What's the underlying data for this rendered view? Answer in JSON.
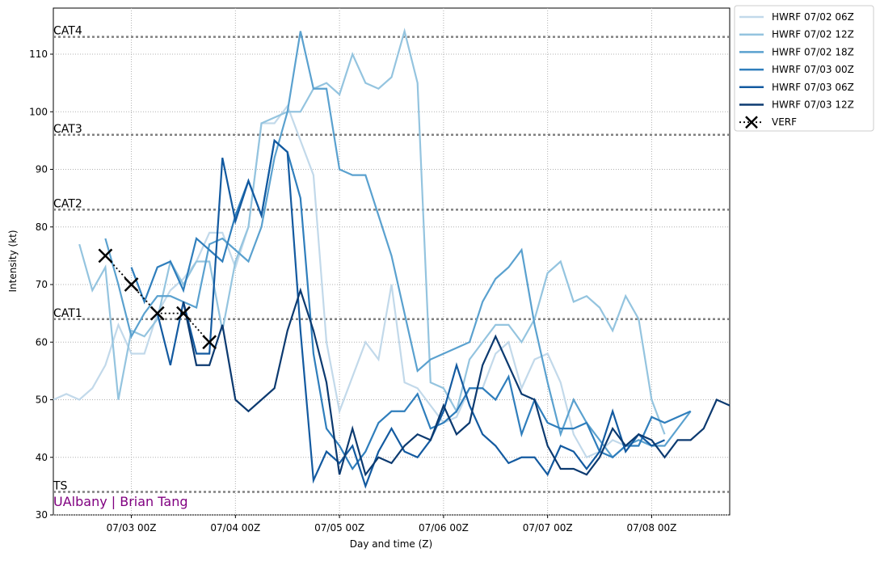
{
  "chart_data": {
    "type": "line",
    "xlabel": "Day and time (Z)",
    "ylabel": "Intensity (kt)",
    "credit": "UAlbany | Brian Tang",
    "credit_color": "#800080",
    "ylim": [
      30,
      118
    ],
    "yticks": [
      30,
      40,
      50,
      60,
      70,
      80,
      90,
      100,
      110
    ],
    "xlim": [
      "07/02 06Z",
      "07/08 18Z"
    ],
    "xticks": [
      "07/03 00Z",
      "07/04 00Z",
      "07/05 00Z",
      "07/06 00Z",
      "07/07 00Z",
      "07/08 00Z"
    ],
    "grid": true,
    "legend": "outside-upper-right",
    "thresholds": [
      {
        "label": "CAT4",
        "value": 113
      },
      {
        "label": "CAT3",
        "value": 96
      },
      {
        "label": "CAT2",
        "value": 83
      },
      {
        "label": "CAT1",
        "value": 64
      },
      {
        "label": "TS",
        "value": 34
      }
    ],
    "x": [
      "07/02 06Z",
      "07/02 09Z",
      "07/02 12Z",
      "07/02 15Z",
      "07/02 18Z",
      "07/02 21Z",
      "07/03 00Z",
      "07/03 03Z",
      "07/03 06Z",
      "07/03 09Z",
      "07/03 12Z",
      "07/03 15Z",
      "07/03 18Z",
      "07/03 21Z",
      "07/04 00Z",
      "07/04 03Z",
      "07/04 06Z",
      "07/04 09Z",
      "07/04 12Z",
      "07/04 15Z",
      "07/04 18Z",
      "07/04 21Z",
      "07/05 00Z",
      "07/05 03Z",
      "07/05 06Z",
      "07/05 09Z",
      "07/05 12Z",
      "07/05 15Z",
      "07/05 18Z",
      "07/05 21Z",
      "07/06 00Z",
      "07/06 03Z",
      "07/06 06Z",
      "07/06 09Z",
      "07/06 12Z",
      "07/06 15Z",
      "07/06 18Z",
      "07/06 21Z",
      "07/07 00Z",
      "07/07 03Z",
      "07/07 06Z",
      "07/07 09Z",
      "07/07 12Z",
      "07/07 15Z",
      "07/07 18Z",
      "07/07 21Z",
      "07/08 00Z",
      "07/08 03Z",
      "07/08 06Z",
      "07/08 09Z",
      "07/08 12Z",
      "07/08 15Z",
      "07/08 18Z"
    ],
    "series": [
      {
        "name": "HWRF 07/02 06Z",
        "color": "#c2d9ea",
        "values": [
          50,
          51,
          50,
          52,
          56,
          63,
          58,
          58,
          65,
          69,
          71,
          74,
          79,
          79,
          73,
          80,
          98,
          98,
          101,
          95,
          89,
          60,
          48,
          54,
          60,
          57,
          70,
          53,
          52,
          49,
          46,
          47,
          52,
          52,
          58,
          60,
          52,
          57,
          58,
          53,
          44,
          40,
          41,
          43,
          42,
          null,
          null,
          null,
          null,
          null,
          null,
          null,
          null
        ]
      },
      {
        "name": "HWRF 07/02 12Z",
        "color": "#94c4df",
        "values": [
          null,
          null,
          77,
          69,
          73,
          50,
          62,
          61,
          64,
          74,
          70,
          74,
          74,
          62,
          74,
          80,
          98,
          99,
          100,
          100,
          104,
          105,
          103,
          110,
          105,
          104,
          106,
          114,
          105,
          53,
          52,
          48,
          57,
          60,
          63,
          63,
          60,
          64,
          72,
          74,
          67,
          68,
          66,
          62,
          68,
          64,
          50,
          44,
          null,
          null,
          null,
          null,
          null
        ]
      },
      {
        "name": "HWRF 07/02 18Z",
        "color": "#5aa1cf",
        "values": [
          null,
          null,
          null,
          null,
          78,
          70,
          61,
          65,
          68,
          68,
          67,
          66,
          77,
          78,
          76,
          74,
          80,
          92,
          100,
          114,
          104,
          104,
          90,
          89,
          89,
          82,
          75,
          65,
          55,
          57,
          58,
          59,
          60,
          67,
          71,
          73,
          76,
          63,
          53,
          44,
          50,
          46,
          43,
          40,
          42,
          43,
          42,
          42,
          45,
          48,
          null,
          null,
          null
        ]
      },
      {
        "name": "HWRF 07/03 00Z",
        "color": "#2f7ebc",
        "values": [
          null,
          null,
          null,
          null,
          null,
          null,
          73,
          67,
          73,
          74,
          69,
          78,
          76,
          74,
          82,
          88,
          82,
          95,
          93,
          85,
          58,
          45,
          42,
          38,
          41,
          46,
          48,
          48,
          51,
          45,
          46,
          48,
          52,
          52,
          50,
          54,
          44,
          50,
          46,
          45,
          45,
          46,
          41,
          40,
          42,
          42,
          47,
          46,
          47,
          48,
          null,
          null,
          null
        ]
      },
      {
        "name": "HWRF 07/03 06Z",
        "color": "#135aa0",
        "values": [
          null,
          null,
          null,
          null,
          null,
          null,
          null,
          null,
          65,
          56,
          67,
          58,
          58,
          92,
          81,
          88,
          82,
          95,
          93,
          62,
          36,
          41,
          39,
          42,
          35,
          41,
          45,
          41,
          40,
          43,
          48,
          56,
          49,
          44,
          42,
          39,
          40,
          40,
          37,
          42,
          41,
          38,
          41,
          48,
          41,
          44,
          42,
          43,
          null,
          null,
          null,
          null,
          null
        ]
      },
      {
        "name": "HWRF 07/03 12Z",
        "color": "#0c3a70",
        "values": [
          null,
          null,
          null,
          null,
          null,
          null,
          null,
          null,
          null,
          null,
          67,
          56,
          56,
          63,
          50,
          48,
          50,
          52,
          62,
          69,
          62,
          53,
          37,
          45,
          37,
          40,
          39,
          42,
          44,
          43,
          49,
          44,
          46,
          56,
          61,
          56,
          51,
          50,
          42,
          38,
          38,
          37,
          40,
          45,
          42,
          44,
          43,
          40,
          43,
          43,
          45,
          50,
          49
        ]
      },
      {
        "name": "VERF",
        "color": "#000000",
        "x": [
          "07/02 18Z",
          "07/03 00Z",
          "07/03 06Z",
          "07/03 12Z",
          "07/03 18Z"
        ],
        "values": [
          75,
          70,
          65,
          65,
          60
        ]
      }
    ]
  }
}
